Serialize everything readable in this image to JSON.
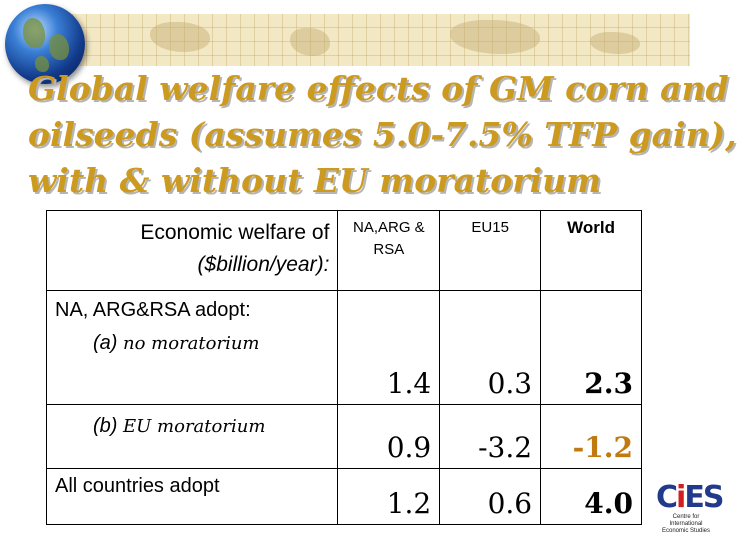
{
  "title_lines": [
    "Global welfare effects of GM corn and",
    "oilseeds (assumes 5.0-7.5% TFP gain),",
    "with & without EU moratorium"
  ],
  "table": {
    "header": {
      "label": "Economic welfare of",
      "unit": "($billion/year):",
      "columns": [
        "NA,ARG & RSA",
        "EU15",
        "World"
      ]
    },
    "rows": [
      {
        "label": "NA, ARG&RSA adopt:",
        "sub_prefix": "(a)",
        "sub_text": "no moratorium",
        "values": [
          "1.4",
          "0.3",
          "2.3"
        ]
      },
      {
        "label": "",
        "sub_prefix": "(b)",
        "sub_text": "EU moratorium",
        "values": [
          "0.9",
          "-3.2",
          "-1.2"
        ]
      },
      {
        "label": "All countries adopt",
        "sub_prefix": "",
        "sub_text": "",
        "values": [
          "1.2",
          "0.6",
          "4.0"
        ]
      }
    ]
  },
  "logo": {
    "mark_prefix": "C",
    "mark_accent": "i",
    "mark_suffix": "ES",
    "caption_line1": "Centre for International",
    "caption_line2": "Economic Studies"
  },
  "colors": {
    "title": "#cc9a1e",
    "negative_world": "#c07a10",
    "logo_blue": "#223a8a",
    "logo_red": "#d02020"
  },
  "icons": {
    "header_globe": "globe-icon"
  }
}
